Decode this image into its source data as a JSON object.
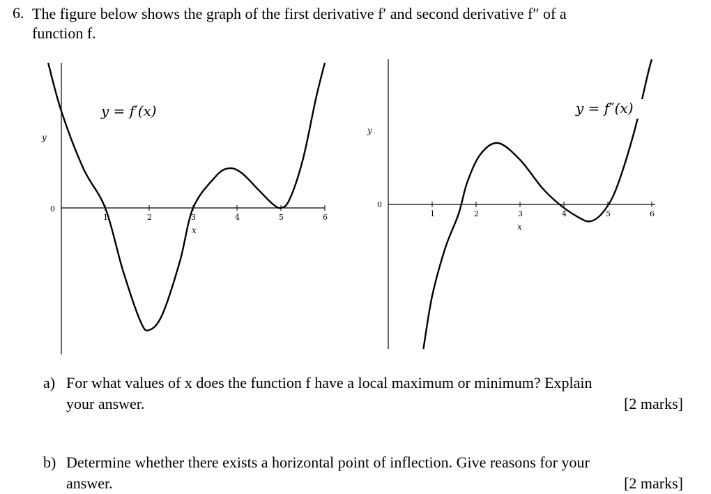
{
  "question": {
    "number": "6.",
    "intro": "The figure below shows the graph of the first derivative f′ and second derivative f″ of a",
    "intro_line2": "function f."
  },
  "chart_data": [
    {
      "type": "line",
      "title": "",
      "curve_label": "y = f′(x)",
      "xlabel": "x",
      "ylabel": "y",
      "origin_label": "0",
      "x_ticks": [
        "1",
        "2",
        "3",
        "4",
        "5",
        "6"
      ],
      "xlim": [
        -0.9,
        6.1
      ],
      "ylim": [
        -3.3,
        3.3
      ],
      "series": [
        {
          "x": [
            -0.3,
            0.0,
            0.5,
            1.0,
            1.4,
            1.8,
            2.0,
            2.3,
            2.7,
            3.0,
            3.5,
            3.8,
            4.1,
            4.5,
            4.8,
            5.0,
            5.2,
            5.5,
            5.8,
            6.0
          ],
          "y": [
            3.3,
            2.2,
            0.9,
            0.0,
            -1.4,
            -2.55,
            -2.75,
            -2.4,
            -1.2,
            0.0,
            0.7,
            0.9,
            0.8,
            0.4,
            0.1,
            0.0,
            0.2,
            1.1,
            2.5,
            3.3
          ]
        }
      ]
    },
    {
      "type": "line",
      "title": "",
      "curve_label": "y = f″(x)",
      "xlabel": "x",
      "ylabel": "y",
      "origin_label": "0",
      "x_ticks": [
        "1",
        "2",
        "3",
        "4",
        "5",
        "6"
      ],
      "xlim": [
        -0.9,
        6.1
      ],
      "ylim": [
        -3.0,
        2.6
      ],
      "series": [
        {
          "x": [
            0.8,
            1.0,
            1.3,
            1.6,
            1.8,
            2.1,
            2.5,
            3.0,
            3.5,
            3.9,
            4.3,
            4.6,
            4.9,
            5.2,
            5.6,
            5.9,
            6.0
          ],
          "y": [
            -3.0,
            -1.9,
            -0.9,
            -0.2,
            0.4,
            0.9,
            1.1,
            0.8,
            0.3,
            0.0,
            -0.25,
            -0.35,
            -0.15,
            0.3,
            1.3,
            2.3,
            2.6
          ]
        }
      ]
    }
  ],
  "parts": {
    "a": {
      "letter": "a)",
      "line1": "For what values of x does the function f have a local maximum or minimum? Explain",
      "line2": "your answer.",
      "marks": "[2 marks]"
    },
    "b": {
      "letter": "b)",
      "line1": "Determine whether there exists a horizontal point of inflection. Give reasons for your",
      "line2": "answer.",
      "marks": "[2 marks]"
    }
  }
}
